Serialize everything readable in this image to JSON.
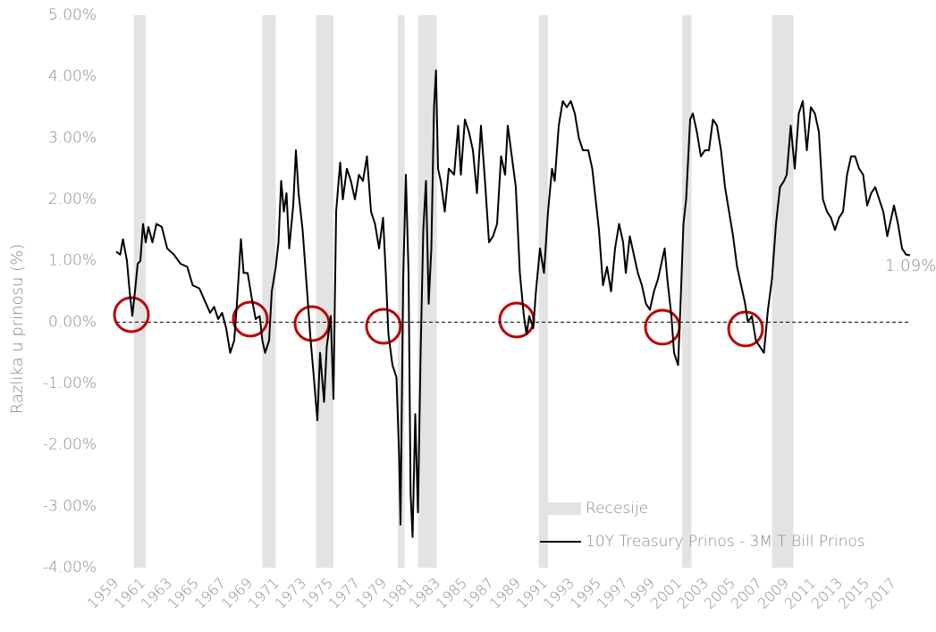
{
  "chart_data": {
    "type": "line",
    "ylabel": "Razlika u prinosu (%)",
    "annotation": "1.09%",
    "xlim": [
      1959,
      2018.2
    ],
    "ylim": [
      -4,
      5
    ],
    "xticks": [
      1959,
      1961,
      1963,
      1965,
      1967,
      1969,
      1971,
      1973,
      1975,
      1977,
      1979,
      1981,
      1983,
      1985,
      1987,
      1989,
      1991,
      1993,
      1995,
      1997,
      1999,
      2001,
      2003,
      2005,
      2007,
      2009,
      2011,
      2013,
      2015,
      2017
    ],
    "yticks": [
      {
        "value": 5,
        "label": "5.00%"
      },
      {
        "value": 4,
        "label": "4.00%"
      },
      {
        "value": 3,
        "label": "3.00%"
      },
      {
        "value": 2,
        "label": "2.00%"
      },
      {
        "value": 1,
        "label": "1.00%"
      },
      {
        "value": 0,
        "label": "0.00%"
      },
      {
        "value": -1,
        "label": "-1.00%"
      },
      {
        "value": -2,
        "label": "-2.00%"
      },
      {
        "value": -3,
        "label": "-3.00%"
      },
      {
        "value": -4,
        "label": "-4.00%"
      }
    ],
    "recessions": {
      "name": "Recesije",
      "color": "#e3e3e3",
      "spans": [
        [
          1960.3,
          1961.2
        ],
        [
          1969.9,
          1970.9
        ],
        [
          1973.9,
          1975.2
        ],
        [
          1980.0,
          1980.5
        ],
        [
          1981.5,
          1982.9
        ],
        [
          1990.5,
          1991.2
        ],
        [
          2001.2,
          2001.9
        ],
        [
          2007.9,
          2009.5
        ]
      ]
    },
    "series": [
      {
        "name": "10Y Treasury Prinos - 3M T Bill Prinos",
        "color": "#000000",
        "x": [
          1959.0,
          1959.3,
          1959.5,
          1959.8,
          1960.0,
          1960.2,
          1960.4,
          1960.6,
          1960.8,
          1961.0,
          1961.2,
          1961.4,
          1961.7,
          1962.0,
          1962.4,
          1962.8,
          1963.3,
          1963.8,
          1964.3,
          1964.7,
          1965.2,
          1965.7,
          1966.0,
          1966.3,
          1966.6,
          1966.9,
          1967.2,
          1967.5,
          1967.8,
          1968.0,
          1968.3,
          1968.5,
          1968.8,
          1969.1,
          1969.4,
          1969.7,
          1969.9,
          1970.1,
          1970.4,
          1970.6,
          1970.9,
          1971.1,
          1971.3,
          1971.5,
          1971.7,
          1971.9,
          1972.2,
          1972.4,
          1972.6,
          1972.9,
          1973.2,
          1973.5,
          1973.7,
          1974.0,
          1974.2,
          1974.5,
          1974.7,
          1975.0,
          1975.2,
          1975.4,
          1975.7,
          1975.9,
          1976.2,
          1976.5,
          1976.8,
          1977.1,
          1977.4,
          1977.7,
          1978.0,
          1978.3,
          1978.6,
          1978.9,
          1979.1,
          1979.3,
          1979.6,
          1979.9,
          1980.1,
          1980.2,
          1980.4,
          1980.6,
          1980.8,
          1980.95,
          1981.1,
          1981.3,
          1981.5,
          1981.7,
          1981.9,
          1982.1,
          1982.3,
          1982.5,
          1982.7,
          1982.85,
          1983.0,
          1983.2,
          1983.5,
          1983.8,
          1984.2,
          1984.5,
          1984.7,
          1985.0,
          1985.3,
          1985.6,
          1985.9,
          1986.2,
          1986.5,
          1986.8,
          1987.1,
          1987.4,
          1987.7,
          1988.0,
          1988.2,
          1988.5,
          1988.8,
          1989.1,
          1989.4,
          1989.6,
          1989.8,
          1990.1,
          1990.3,
          1990.6,
          1990.9,
          1991.2,
          1991.5,
          1991.7,
          1992.0,
          1992.3,
          1992.6,
          1992.9,
          1993.2,
          1993.5,
          1993.8,
          1994.2,
          1994.5,
          1994.8,
          1995.0,
          1995.3,
          1995.6,
          1995.9,
          1996.2,
          1996.5,
          1996.8,
          1997.0,
          1997.3,
          1997.6,
          1997.9,
          1998.2,
          1998.5,
          1998.8,
          1999.1,
          1999.4,
          1999.7,
          1999.9,
          2000.1,
          2000.4,
          2000.6,
          2000.9,
          2001.1,
          2001.3,
          2001.5,
          2001.8,
          2002.0,
          2002.3,
          2002.6,
          2002.9,
          2003.2,
          2003.5,
          2003.8,
          2004.1,
          2004.4,
          2004.7,
          2005.0,
          2005.3,
          2005.6,
          2005.9,
          2006.1,
          2006.4,
          2006.7,
          2007.0,
          2007.3,
          2007.6,
          2007.9,
          2008.2,
          2008.5,
          2008.8,
          2009.0,
          2009.3,
          2009.6,
          2009.9,
          2010.2,
          2010.5,
          2010.8,
          2011.1,
          2011.4,
          2011.7,
          2012.0,
          2012.3,
          2012.6,
          2012.9,
          2013.2,
          2013.5,
          2013.8,
          2014.1,
          2014.4,
          2014.7,
          2015.0,
          2015.3,
          2015.6,
          2015.9,
          2016.2,
          2016.5,
          2016.8,
          2017.0,
          2017.3,
          2017.6,
          2017.9,
          2018.2
        ],
        "values": [
          1.15,
          1.1,
          1.35,
          1.0,
          0.5,
          0.1,
          0.5,
          0.95,
          1.0,
          1.6,
          1.3,
          1.55,
          1.3,
          1.6,
          1.55,
          1.2,
          1.1,
          0.95,
          0.9,
          0.6,
          0.55,
          0.3,
          0.15,
          0.25,
          0.05,
          0.15,
          -0.1,
          -0.5,
          -0.3,
          0.3,
          1.35,
          0.8,
          0.8,
          0.4,
          0.05,
          0.1,
          -0.3,
          -0.5,
          -0.3,
          0.5,
          0.9,
          1.3,
          2.3,
          1.8,
          2.1,
          1.2,
          1.9,
          2.8,
          2.1,
          1.5,
          0.6,
          -0.3,
          -0.8,
          -1.6,
          -0.5,
          -1.3,
          -0.4,
          0.1,
          -1.25,
          1.8,
          2.6,
          2.0,
          2.5,
          2.3,
          2.0,
          2.4,
          2.3,
          2.7,
          1.8,
          1.6,
          1.2,
          1.7,
          0.8,
          -0.2,
          -0.7,
          -0.9,
          -2.2,
          -3.3,
          0.7,
          2.4,
          0.8,
          -2.8,
          -3.5,
          -1.5,
          -3.1,
          -0.5,
          1.5,
          2.3,
          0.3,
          1.2,
          3.5,
          4.1,
          2.5,
          2.3,
          1.8,
          2.5,
          2.4,
          3.2,
          2.4,
          3.3,
          3.1,
          2.8,
          2.1,
          3.2,
          2.3,
          1.3,
          1.4,
          1.6,
          2.7,
          2.4,
          3.2,
          2.7,
          2.2,
          0.8,
          0.1,
          -0.2,
          0.1,
          -0.1,
          0.5,
          1.2,
          0.8,
          1.8,
          2.5,
          2.3,
          3.2,
          3.6,
          3.5,
          3.6,
          3.4,
          3.0,
          2.8,
          2.8,
          2.5,
          1.9,
          1.5,
          0.6,
          0.9,
          0.5,
          1.2,
          1.6,
          1.3,
          0.8,
          1.4,
          1.1,
          0.8,
          0.6,
          0.3,
          0.2,
          0.5,
          0.7,
          1.0,
          1.2,
          0.7,
          0.1,
          -0.5,
          -0.7,
          0.4,
          1.6,
          2.0,
          3.3,
          3.4,
          3.1,
          2.7,
          2.8,
          2.8,
          3.3,
          3.2,
          2.8,
          2.2,
          1.8,
          1.4,
          0.9,
          0.6,
          0.3,
          0.0,
          0.1,
          -0.3,
          -0.4,
          -0.5,
          0.2,
          0.7,
          1.6,
          2.2,
          2.3,
          2.4,
          3.2,
          2.5,
          3.4,
          3.6,
          2.8,
          3.5,
          3.4,
          3.1,
          2.0,
          1.8,
          1.7,
          1.5,
          1.7,
          1.8,
          2.4,
          2.7,
          2.7,
          2.5,
          2.4,
          1.9,
          2.1,
          2.2,
          2.0,
          1.8,
          1.4,
          1.7,
          1.9,
          1.6,
          1.2,
          1.1,
          1.09
        ]
      }
    ]
  }
}
